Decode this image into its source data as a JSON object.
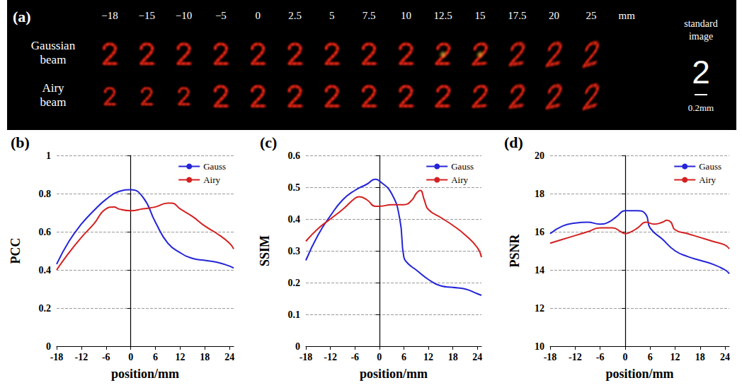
{
  "panel_a": {
    "title": "(a)",
    "positions": [
      "−18",
      "−15",
      "−10",
      "−5",
      "0",
      "2.5",
      "5",
      "7.5",
      "10",
      "12.5",
      "15",
      "17.5",
      "20",
      "25"
    ],
    "unit": "mm",
    "rows": [
      "Gaussian beam",
      "Airy beam"
    ],
    "standard_image": {
      "label": "standard image",
      "digit": "2"
    },
    "scale_bar": "0.2mm"
  },
  "chart_data": [
    {
      "type": "line",
      "title": "(b)",
      "xlabel": "position/mm",
      "ylabel": "PCC",
      "xlim": [
        -18,
        25
      ],
      "xticks": [
        -18,
        -12,
        -6,
        0,
        6,
        12,
        18,
        24
      ],
      "ylim": [
        0,
        1
      ],
      "yticks": [
        0,
        0.2,
        0.4,
        0.6,
        0.8,
        1
      ],
      "grid": true,
      "legend": "top-right",
      "marker": "none",
      "line_style": "solid",
      "series": [
        {
          "name": "Gauss",
          "color": "#2424d8",
          "x": [
            -18,
            -15,
            -12,
            -9,
            -6,
            -3,
            0,
            3,
            6,
            9,
            12,
            15,
            18,
            21,
            24,
            25
          ],
          "values": [
            0.43,
            0.55,
            0.64,
            0.71,
            0.77,
            0.81,
            0.82,
            0.78,
            0.65,
            0.54,
            0.49,
            0.46,
            0.45,
            0.44,
            0.42,
            0.41
          ]
        },
        {
          "name": "Airy",
          "color": "#d42020",
          "x": [
            -18,
            -15,
            -12,
            -9,
            -6,
            -4,
            -3,
            0,
            3,
            6,
            9,
            10,
            12,
            15,
            18,
            21,
            24,
            25
          ],
          "values": [
            0.4,
            0.49,
            0.57,
            0.64,
            0.72,
            0.73,
            0.72,
            0.71,
            0.72,
            0.73,
            0.75,
            0.75,
            0.72,
            0.68,
            0.63,
            0.59,
            0.54,
            0.51
          ]
        }
      ]
    },
    {
      "type": "line",
      "title": "(c)",
      "xlabel": "position/mm",
      "ylabel": "SSIM",
      "xlim": [
        -18,
        25
      ],
      "xticks": [
        -18,
        -12,
        -6,
        0,
        6,
        12,
        18,
        24
      ],
      "ylim": [
        0,
        0.6
      ],
      "yticks": [
        0,
        0.1,
        0.2,
        0.3,
        0.4,
        0.5,
        0.6
      ],
      "grid": true,
      "legend": "top-right",
      "marker": "none",
      "line_style": "solid",
      "series": [
        {
          "name": "Gauss",
          "color": "#2424d8",
          "x": [
            -18,
            -15,
            -12,
            -9,
            -6,
            -3,
            -1,
            0,
            3,
            5,
            6,
            7,
            9,
            12,
            15,
            18,
            21,
            24,
            25
          ],
          "values": [
            0.27,
            0.35,
            0.41,
            0.46,
            0.49,
            0.51,
            0.525,
            0.52,
            0.48,
            0.4,
            0.28,
            0.26,
            0.24,
            0.21,
            0.19,
            0.185,
            0.18,
            0.165,
            0.16
          ]
        },
        {
          "name": "Airy",
          "color": "#d42020",
          "x": [
            -18,
            -15,
            -12,
            -9,
            -6,
            -5,
            -3,
            -1,
            0,
            3,
            6,
            8,
            9,
            10,
            11,
            12,
            15,
            18,
            21,
            24,
            25
          ],
          "values": [
            0.33,
            0.37,
            0.4,
            0.43,
            0.465,
            0.47,
            0.46,
            0.44,
            0.44,
            0.445,
            0.445,
            0.46,
            0.48,
            0.49,
            0.46,
            0.43,
            0.405,
            0.38,
            0.35,
            0.31,
            0.28
          ]
        }
      ]
    },
    {
      "type": "line",
      "title": "(d)",
      "xlabel": "position/mm",
      "ylabel": "PSNR",
      "xlim": [
        -18,
        25
      ],
      "xticks": [
        -18,
        -12,
        -6,
        0,
        6,
        12,
        18,
        24
      ],
      "ylim": [
        10,
        20
      ],
      "yticks": [
        10,
        12,
        14,
        16,
        18,
        20
      ],
      "grid": true,
      "legend": "top-right",
      "marker": "none",
      "line_style": "solid",
      "series": [
        {
          "name": "Gauss",
          "color": "#2424d8",
          "x": [
            -18,
            -15,
            -12,
            -9,
            -6,
            -4,
            -2,
            0,
            3,
            5,
            6,
            9,
            12,
            15,
            18,
            21,
            24,
            25
          ],
          "values": [
            15.9,
            16.3,
            16.45,
            16.5,
            16.4,
            16.5,
            16.8,
            17.1,
            17.1,
            16.9,
            16.2,
            15.6,
            15.0,
            14.7,
            14.5,
            14.3,
            14.0,
            13.8
          ]
        },
        {
          "name": "Airy",
          "color": "#d42020",
          "x": [
            -18,
            -15,
            -12,
            -9,
            -6,
            -3,
            -1,
            0,
            1,
            3,
            5,
            7,
            9,
            10,
            11,
            12,
            15,
            18,
            21,
            24,
            25
          ],
          "values": [
            15.4,
            15.6,
            15.8,
            16.0,
            16.2,
            16.2,
            16.0,
            15.9,
            15.95,
            16.2,
            16.5,
            16.4,
            16.5,
            16.6,
            16.5,
            16.1,
            15.9,
            15.7,
            15.5,
            15.3,
            15.1
          ]
        }
      ]
    }
  ]
}
